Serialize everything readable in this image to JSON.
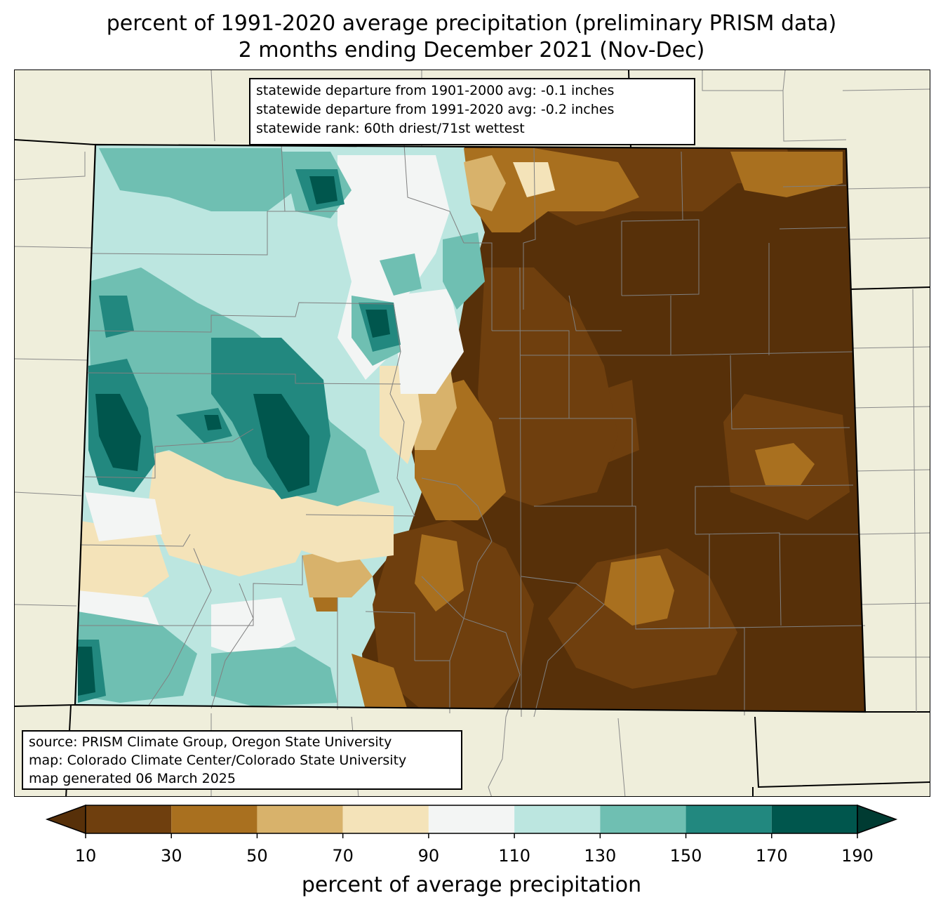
{
  "title": {
    "line1": "percent of 1991-2020 average precipitation (preliminary PRISM data)",
    "line2": "2 months ending December 2021 (Nov-Dec)"
  },
  "stats_box": {
    "line1": "statewide departure from 1901-2000 avg: -0.1 inches",
    "line2": "statewide departure from 1991-2020 avg: -0.2 inches",
    "line3": "statewide rank: 60th driest/71st wettest"
  },
  "source_box": {
    "line1": "source: PRISM Climate Group, Oregon State University",
    "line2": "map: Colorado Climate Center/Colorado State University",
    "line3": "map generated 06 March 2025"
  },
  "colorbar": {
    "label": "percent of average precipitation",
    "ticks": [
      "10",
      "30",
      "50",
      "70",
      "90",
      "110",
      "130",
      "150",
      "170",
      "190"
    ],
    "colors": [
      "#6f3f0e",
      "#a9701f",
      "#d8b26b",
      "#f4e3b9",
      "#f3f5f4",
      "#bce6e0",
      "#6fbfb2",
      "#22887f",
      "#00564d"
    ],
    "under_color": "#573009",
    "over_color": "#003b32"
  },
  "colors": {
    "background_land": "#efeedb",
    "county_lines": "#808080",
    "state_lines": "#000000"
  }
}
